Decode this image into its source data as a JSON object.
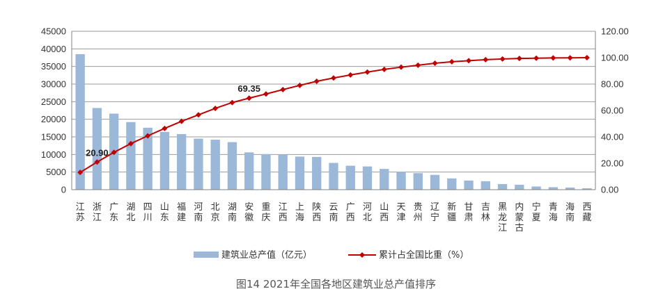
{
  "caption": "图14 2021年全国各地区建筑业总产值排序",
  "chart_data": {
    "type": "bar",
    "categories": [
      "江苏",
      "浙江",
      "广东",
      "湖北",
      "四川",
      "山东",
      "福建",
      "河南",
      "北京",
      "湖南",
      "安徽",
      "重庆",
      "江西",
      "上海",
      "陕西",
      "云南",
      "广西",
      "河北",
      "山西",
      "天津",
      "贵州",
      "辽宁",
      "新疆",
      "甘肃",
      "吉林",
      "黑龙江",
      "内蒙古",
      "宁夏",
      "青海",
      "海南",
      "西藏"
    ],
    "series": [
      {
        "name": "建筑业总产值（亿元）",
        "type": "bar",
        "axis": "left",
        "color": "#9bb8d9",
        "values": [
          38500,
          23200,
          21600,
          19200,
          17600,
          16400,
          15800,
          14500,
          14200,
          13500,
          10600,
          10100,
          10000,
          9400,
          9300,
          7600,
          6800,
          6600,
          5900,
          5100,
          4700,
          4200,
          3200,
          2600,
          2400,
          1600,
          1400,
          900,
          700,
          600,
          400
        ]
      },
      {
        "name": "累计占全国比重（%）",
        "type": "line",
        "axis": "right",
        "color": "#c00000",
        "values": [
          13.1,
          20.9,
          28.3,
          34.9,
          40.8,
          46.4,
          51.8,
          56.7,
          61.6,
          66.0,
          69.35,
          72.5,
          75.8,
          79.0,
          82.1,
          84.6,
          86.9,
          89.1,
          91.1,
          92.8,
          94.3,
          95.8,
          96.9,
          97.7,
          98.5,
          99.0,
          99.4,
          99.6,
          99.8,
          99.9,
          100.0
        ]
      }
    ],
    "y_left": {
      "min": 0,
      "max": 45000,
      "step": 5000,
      "tick_labels": [
        "0",
        "5000",
        "10000",
        "15000",
        "20000",
        "25000",
        "30000",
        "35000",
        "40000",
        "45000"
      ]
    },
    "y_right": {
      "min": 0,
      "max": 120,
      "step": 20,
      "tick_labels": [
        "0.00",
        "20.00",
        "40.00",
        "60.00",
        "80.00",
        "100.00",
        "120.00"
      ]
    },
    "annotations": [
      {
        "series_index": 1,
        "category_index": 1,
        "text": "20.90"
      },
      {
        "series_index": 1,
        "category_index": 10,
        "text": "69.35"
      }
    ],
    "grid": true,
    "legend_position": "bottom"
  }
}
